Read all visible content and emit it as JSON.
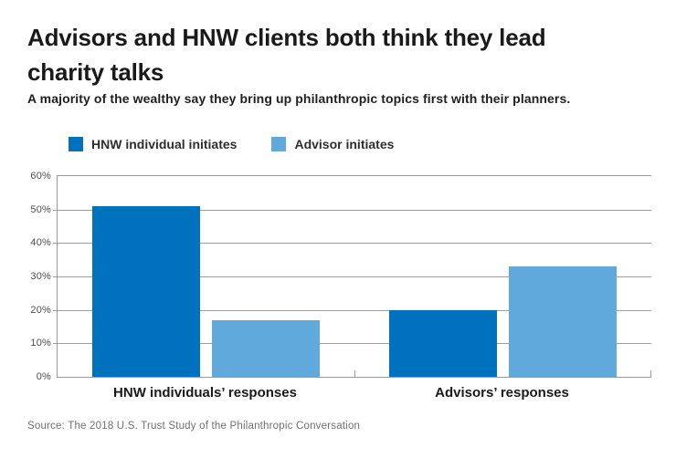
{
  "header": {
    "title": "Advisors and HNW clients both think they lead charity talks",
    "subtitle": "A majority of the wealthy say they bring up philanthropic topics first with their planners."
  },
  "footer": {
    "source": "Source: The 2018 U.S. Trust Study of the Philanthropic Conversation"
  },
  "colors": {
    "dark_blue": "#0071BC",
    "light_blue": "#5FA9DD",
    "axis_gray": "#9a9a9a",
    "grid_gray": "#9e9e9e",
    "text_dark": "#1a1a1a",
    "tick_label_gray": "#4d4d4d",
    "source_gray": "#6f6f6f"
  },
  "chart_data": {
    "type": "bar",
    "categories": [
      "HNW individuals’ responses",
      "Advisors’ responses"
    ],
    "series": [
      {
        "name": "HNW individual initiates",
        "color": "#0071BC",
        "values": [
          51,
          20
        ]
      },
      {
        "name": "Advisor initiates",
        "color": "#5FA9DD",
        "values": [
          17,
          33
        ]
      }
    ],
    "title": "Advisors and HNW clients both think they lead charity talks",
    "xlabel": "",
    "ylabel": "",
    "ylim": [
      0,
      60
    ],
    "y_ticks": [
      "0%",
      "10%",
      "20%",
      "30%",
      "40%",
      "50%",
      "60%"
    ],
    "tick_step": 10,
    "grid": true,
    "legend_position": "top-left"
  }
}
